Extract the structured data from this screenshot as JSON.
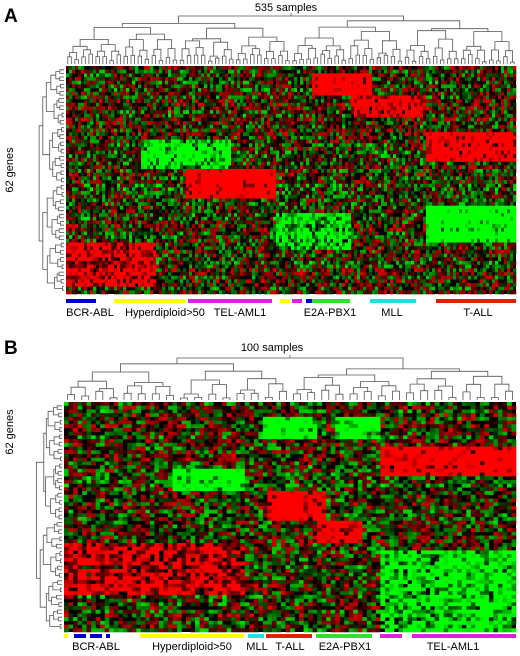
{
  "chart_data": [
    {
      "type": "heatmap",
      "panel_label": "A",
      "top_label": "535 samples",
      "side_label": "62 genes",
      "color_scale": {
        "low": "#00ff00",
        "mid": "#000000",
        "high": "#ff0000"
      },
      "groups": [
        {
          "name": "BCR-ABL",
          "color": "#0000cc"
        },
        {
          "name": "Hyperdiploid>50",
          "color": "#ffff00"
        },
        {
          "name": "TEL-AML1",
          "color": "#dd22dd"
        },
        {
          "name": "E2A-PBX1",
          "color": "#33dd33"
        },
        {
          "name": "MLL",
          "color": "#22e0e0"
        },
        {
          "name": "T-ALL",
          "color": "#dd2200"
        }
      ]
    },
    {
      "type": "heatmap",
      "panel_label": "B",
      "top_label": "100 samples",
      "side_label": "62 genes",
      "color_scale": {
        "low": "#00ff00",
        "mid": "#000000",
        "high": "#ff0000"
      },
      "groups": [
        {
          "name": "BCR-ABL",
          "color": "#0000cc"
        },
        {
          "name": "Hyperdiploid>50",
          "color": "#ffff00"
        },
        {
          "name": "MLL",
          "color": "#22e0e0"
        },
        {
          "name": "T-ALL",
          "color": "#dd2200"
        },
        {
          "name": "E2A-PBX1",
          "color": "#33dd33"
        },
        {
          "name": "TEL-AML1",
          "color": "#dd22dd"
        }
      ]
    }
  ]
}
